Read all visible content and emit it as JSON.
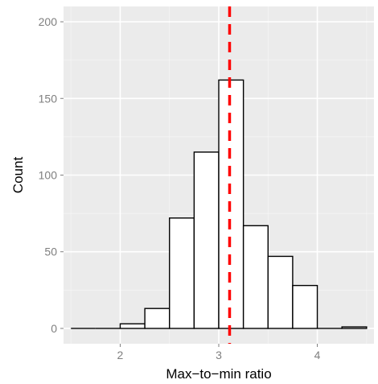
{
  "chart_data": {
    "type": "bar",
    "title": "",
    "xlabel": "Max−to−min ratio",
    "ylabel": "Count",
    "xlim": [
      1.425,
      4.575
    ],
    "ylim": [
      -10,
      210
    ],
    "x_ticks": [
      2,
      3,
      4
    ],
    "y_ticks": [
      0,
      50,
      100,
      150,
      200
    ],
    "x_tick_labels": [
      "2",
      "3",
      "4"
    ],
    "y_tick_labels": [
      "0",
      "50",
      "100",
      "150",
      "200"
    ],
    "bin_width": 0.25,
    "bins": [
      {
        "from": 1.5,
        "to": 1.75,
        "count": 0
      },
      {
        "from": 1.75,
        "to": 2.0,
        "count": 0
      },
      {
        "from": 2.0,
        "to": 2.25,
        "count": 3
      },
      {
        "from": 2.25,
        "to": 2.5,
        "count": 13
      },
      {
        "from": 2.5,
        "to": 2.75,
        "count": 72
      },
      {
        "from": 2.75,
        "to": 3.0,
        "count": 115
      },
      {
        "from": 3.0,
        "to": 3.25,
        "count": 162
      },
      {
        "from": 3.25,
        "to": 3.5,
        "count": 67
      },
      {
        "from": 3.5,
        "to": 3.75,
        "count": 47
      },
      {
        "from": 3.75,
        "to": 4.0,
        "count": 28
      },
      {
        "from": 4.0,
        "to": 4.25,
        "count": 0
      },
      {
        "from": 4.25,
        "to": 4.5,
        "count": 1
      }
    ],
    "reference_line": {
      "x": 3.11,
      "color": "#ff0000",
      "style": "dashed"
    },
    "colors": {
      "panel": "#ebebeb",
      "grid": "#ffffff",
      "bar_fill": "#ffffff",
      "bar_outline": "#000000"
    },
    "grid": true,
    "legend": "none"
  }
}
